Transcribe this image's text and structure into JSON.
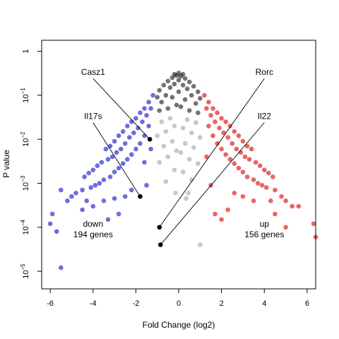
{
  "chart_data": {
    "type": "scatter",
    "xlabel": "Fold Change (log2)",
    "ylabel": "P value",
    "xlim": [
      -6.4,
      6.4
    ],
    "ylim_log10": [
      -5.4,
      0.25
    ],
    "x_ticks": [
      {
        "value": -6,
        "label": "-6"
      },
      {
        "value": -4,
        "label": "-4"
      },
      {
        "value": -2,
        "label": "-2"
      },
      {
        "value": 0,
        "label": "0"
      },
      {
        "value": 2,
        "label": "2"
      },
      {
        "value": 4,
        "label": "4"
      },
      {
        "value": 6,
        "label": "6"
      }
    ],
    "y_ticks": [
      {
        "value": 1,
        "base": "1",
        "exp": ""
      },
      {
        "value": 0.1,
        "base": "10",
        "exp": "−1"
      },
      {
        "value": 0.01,
        "base": "10",
        "exp": "−2"
      },
      {
        "value": 0.001,
        "base": "10",
        "exp": "−3"
      },
      {
        "value": 0.0001,
        "base": "10",
        "exp": "−4"
      },
      {
        "value": 1e-05,
        "base": "10",
        "exp": "−5"
      }
    ],
    "colors": {
      "down": "#1f1fcc",
      "up": "#dd1111",
      "top": "#000000",
      "ns": "#999999"
    },
    "group_labels": [
      {
        "id": "down",
        "lines": [
          "down",
          "194 genes"
        ],
        "x": -4.0,
        "p": 0.0001
      },
      {
        "id": "up",
        "lines": [
          "up",
          "156 genes"
        ],
        "x": 4.0,
        "p": 0.0001
      }
    ],
    "highlighted_genes": [
      {
        "name": "Casz1",
        "x": -1.35,
        "p": 0.01,
        "label_x": -4.0,
        "label_p": 0.3
      },
      {
        "name": "Il17s",
        "x": -1.8,
        "p": 0.0005,
        "label_x": -4.0,
        "label_p": 0.03
      },
      {
        "name": "Rorc",
        "x": -0.9,
        "p": 0.0001,
        "label_x": 4.0,
        "label_p": 0.3
      },
      {
        "name": "Il22",
        "x": -0.85,
        "p": 4e-05,
        "label_x": 4.0,
        "label_p": 0.03
      }
    ],
    "points": [
      {
        "x": -0.2,
        "p": 0.3,
        "g": "top"
      },
      {
        "x": 0.0,
        "p": 0.32,
        "g": "top"
      },
      {
        "x": 0.2,
        "p": 0.3,
        "g": "top"
      },
      {
        "x": -0.1,
        "p": 0.28,
        "g": "top"
      },
      {
        "x": 0.1,
        "p": 0.27,
        "g": "top"
      },
      {
        "x": -0.3,
        "p": 0.25,
        "g": "top"
      },
      {
        "x": 0.3,
        "p": 0.24,
        "g": "top"
      },
      {
        "x": -0.5,
        "p": 0.21,
        "g": "top"
      },
      {
        "x": 0.5,
        "p": 0.2,
        "g": "top"
      },
      {
        "x": -0.7,
        "p": 0.17,
        "g": "top"
      },
      {
        "x": 0.7,
        "p": 0.16,
        "g": "top"
      },
      {
        "x": -0.9,
        "p": 0.13,
        "g": "top"
      },
      {
        "x": 0.9,
        "p": 0.12,
        "g": "top"
      },
      {
        "x": -0.4,
        "p": 0.15,
        "g": "top"
      },
      {
        "x": 0.4,
        "p": 0.14,
        "g": "top"
      },
      {
        "x": -0.2,
        "p": 0.18,
        "g": "top"
      },
      {
        "x": 0.2,
        "p": 0.17,
        "g": "top"
      },
      {
        "x": -0.6,
        "p": 0.1,
        "g": "top"
      },
      {
        "x": 0.6,
        "p": 0.1,
        "g": "top"
      },
      {
        "x": -1.0,
        "p": 0.09,
        "g": "top"
      },
      {
        "x": 1.0,
        "p": 0.085,
        "g": "top"
      },
      {
        "x": -0.3,
        "p": 0.09,
        "g": "top"
      },
      {
        "x": 0.3,
        "p": 0.08,
        "g": "top"
      },
      {
        "x": -0.8,
        "p": 0.07,
        "g": "top"
      },
      {
        "x": 0.8,
        "p": 0.065,
        "g": "top"
      },
      {
        "x": 0.0,
        "p": 0.12,
        "g": "top"
      },
      {
        "x": -0.1,
        "p": 0.06,
        "g": "top"
      },
      {
        "x": 0.1,
        "p": 0.055,
        "g": "top"
      },
      {
        "x": -0.5,
        "p": 0.05,
        "g": "top"
      },
      {
        "x": 0.5,
        "p": 0.045,
        "g": "top"
      },
      {
        "x": -0.9,
        "p": 0.045,
        "g": "top"
      },
      {
        "x": 0.9,
        "p": 0.04,
        "g": "top"
      },
      {
        "x": 0.0,
        "p": 0.22,
        "g": "top"
      },
      {
        "x": -0.4,
        "p": 0.03,
        "g": "ns"
      },
      {
        "x": 0.4,
        "p": 0.028,
        "g": "ns"
      },
      {
        "x": -0.8,
        "p": 0.025,
        "g": "ns"
      },
      {
        "x": 0.8,
        "p": 0.024,
        "g": "ns"
      },
      {
        "x": -0.2,
        "p": 0.02,
        "g": "ns"
      },
      {
        "x": 0.2,
        "p": 0.018,
        "g": "ns"
      },
      {
        "x": -0.6,
        "p": 0.015,
        "g": "ns"
      },
      {
        "x": 0.6,
        "p": 0.014,
        "g": "ns"
      },
      {
        "x": -1.0,
        "p": 0.012,
        "g": "ns"
      },
      {
        "x": 1.0,
        "p": 0.011,
        "g": "ns"
      },
      {
        "x": -0.3,
        "p": 0.009,
        "g": "ns"
      },
      {
        "x": 0.3,
        "p": 0.008,
        "g": "ns"
      },
      {
        "x": -0.7,
        "p": 0.007,
        "g": "ns"
      },
      {
        "x": 0.7,
        "p": 0.0065,
        "g": "ns"
      },
      {
        "x": -0.1,
        "p": 0.0055,
        "g": "ns"
      },
      {
        "x": 0.1,
        "p": 0.005,
        "g": "ns"
      },
      {
        "x": -0.5,
        "p": 0.004,
        "g": "ns"
      },
      {
        "x": 0.5,
        "p": 0.0035,
        "g": "ns"
      },
      {
        "x": -0.9,
        "p": 0.003,
        "g": "ns"
      },
      {
        "x": 0.9,
        "p": 0.0028,
        "g": "ns"
      },
      {
        "x": -0.2,
        "p": 0.002,
        "g": "ns"
      },
      {
        "x": 0.2,
        "p": 0.0018,
        "g": "ns"
      },
      {
        "x": 0.6,
        "p": 0.0012,
        "g": "ns"
      },
      {
        "x": -0.6,
        "p": 0.0011,
        "g": "ns"
      },
      {
        "x": -0.15,
        "p": 0.0006,
        "g": "ns"
      },
      {
        "x": 0.45,
        "p": 0.0006,
        "g": "ns"
      },
      {
        "x": 0.35,
        "p": 0.00045,
        "g": "ns"
      },
      {
        "x": 1.0,
        "p": 4e-05,
        "g": "ns"
      },
      {
        "x": -1.2,
        "p": 0.1,
        "g": "down"
      },
      {
        "x": -1.4,
        "p": 0.07,
        "g": "down"
      },
      {
        "x": -1.6,
        "p": 0.05,
        "g": "down"
      },
      {
        "x": -1.8,
        "p": 0.04,
        "g": "down"
      },
      {
        "x": -2.0,
        "p": 0.03,
        "g": "down"
      },
      {
        "x": -2.2,
        "p": 0.025,
        "g": "down"
      },
      {
        "x": -2.4,
        "p": 0.02,
        "g": "down"
      },
      {
        "x": -2.6,
        "p": 0.015,
        "g": "down"
      },
      {
        "x": -2.8,
        "p": 0.012,
        "g": "down"
      },
      {
        "x": -3.0,
        "p": 0.009,
        "g": "down"
      },
      {
        "x": -3.2,
        "p": 0.007,
        "g": "down"
      },
      {
        "x": -3.4,
        "p": 0.006,
        "g": "down"
      },
      {
        "x": -1.3,
        "p": 0.05,
        "g": "down"
      },
      {
        "x": -1.5,
        "p": 0.035,
        "g": "down"
      },
      {
        "x": -1.7,
        "p": 0.025,
        "g": "down"
      },
      {
        "x": -1.9,
        "p": 0.018,
        "g": "down"
      },
      {
        "x": -2.1,
        "p": 0.014,
        "g": "down"
      },
      {
        "x": -2.3,
        "p": 0.011,
        "g": "down"
      },
      {
        "x": -2.5,
        "p": 0.008,
        "g": "down"
      },
      {
        "x": -2.7,
        "p": 0.006,
        "g": "down"
      },
      {
        "x": -2.9,
        "p": 0.005,
        "g": "down"
      },
      {
        "x": -3.1,
        "p": 0.004,
        "g": "down"
      },
      {
        "x": -3.3,
        "p": 0.0035,
        "g": "down"
      },
      {
        "x": -3.6,
        "p": 0.003,
        "g": "down"
      },
      {
        "x": -3.8,
        "p": 0.0025,
        "g": "down"
      },
      {
        "x": -4.0,
        "p": 0.002,
        "g": "down"
      },
      {
        "x": -4.2,
        "p": 0.0017,
        "g": "down"
      },
      {
        "x": -4.4,
        "p": 0.0014,
        "g": "down"
      },
      {
        "x": -1.4,
        "p": 0.02,
        "g": "down"
      },
      {
        "x": -1.6,
        "p": 0.012,
        "g": "down"
      },
      {
        "x": -1.8,
        "p": 0.008,
        "g": "down"
      },
      {
        "x": -2.0,
        "p": 0.006,
        "g": "down"
      },
      {
        "x": -2.2,
        "p": 0.0045,
        "g": "down"
      },
      {
        "x": -2.4,
        "p": 0.0035,
        "g": "down"
      },
      {
        "x": -2.6,
        "p": 0.0028,
        "g": "down"
      },
      {
        "x": -2.8,
        "p": 0.0022,
        "g": "down"
      },
      {
        "x": -3.0,
        "p": 0.0018,
        "g": "down"
      },
      {
        "x": -3.2,
        "p": 0.0014,
        "g": "down"
      },
      {
        "x": -3.5,
        "p": 0.0012,
        "g": "down"
      },
      {
        "x": -3.7,
        "p": 0.001,
        "g": "down"
      },
      {
        "x": -3.9,
        "p": 0.0009,
        "g": "down"
      },
      {
        "x": -4.1,
        "p": 0.0008,
        "g": "down"
      },
      {
        "x": -4.5,
        "p": 0.0007,
        "g": "down"
      },
      {
        "x": -4.8,
        "p": 0.0006,
        "g": "down"
      },
      {
        "x": -5.0,
        "p": 0.0005,
        "g": "down"
      },
      {
        "x": -5.2,
        "p": 0.0004,
        "g": "down"
      },
      {
        "x": -5.5,
        "p": 0.0007,
        "g": "down"
      },
      {
        "x": -5.9,
        "p": 0.0002,
        "g": "down"
      },
      {
        "x": -6.0,
        "p": 0.00012,
        "g": "down"
      },
      {
        "x": -5.7,
        "p": 8e-05,
        "g": "down"
      },
      {
        "x": -5.5,
        "p": 1.2e-05,
        "g": "down"
      },
      {
        "x": -4.5,
        "p": 0.00025,
        "g": "down"
      },
      {
        "x": -4.0,
        "p": 0.0003,
        "g": "down"
      },
      {
        "x": -3.5,
        "p": 0.0004,
        "g": "down"
      },
      {
        "x": -3.0,
        "p": 0.00045,
        "g": "down"
      },
      {
        "x": -2.5,
        "p": 0.0005,
        "g": "down"
      },
      {
        "x": -2.2,
        "p": 0.0007,
        "g": "down"
      },
      {
        "x": -3.3,
        "p": 0.00015,
        "g": "down"
      },
      {
        "x": -2.8,
        "p": 0.0002,
        "g": "down"
      },
      {
        "x": -1.5,
        "p": 0.0009,
        "g": "down"
      },
      {
        "x": -1.6,
        "p": 0.003,
        "g": "down"
      },
      {
        "x": -1.3,
        "p": 0.006,
        "g": "down"
      },
      {
        "x": -4.3,
        "p": 0.0004,
        "g": "down"
      },
      {
        "x": 1.2,
        "p": 0.1,
        "g": "up"
      },
      {
        "x": 1.4,
        "p": 0.07,
        "g": "up"
      },
      {
        "x": 1.6,
        "p": 0.05,
        "g": "up"
      },
      {
        "x": 1.8,
        "p": 0.04,
        "g": "up"
      },
      {
        "x": 2.0,
        "p": 0.03,
        "g": "up"
      },
      {
        "x": 2.2,
        "p": 0.025,
        "g": "up"
      },
      {
        "x": 2.4,
        "p": 0.02,
        "g": "up"
      },
      {
        "x": 2.6,
        "p": 0.015,
        "g": "up"
      },
      {
        "x": 2.8,
        "p": 0.012,
        "g": "up"
      },
      {
        "x": 3.0,
        "p": 0.009,
        "g": "up"
      },
      {
        "x": 3.2,
        "p": 0.007,
        "g": "up"
      },
      {
        "x": 3.4,
        "p": 0.006,
        "g": "up"
      },
      {
        "x": 1.3,
        "p": 0.05,
        "g": "up"
      },
      {
        "x": 1.5,
        "p": 0.035,
        "g": "up"
      },
      {
        "x": 1.7,
        "p": 0.025,
        "g": "up"
      },
      {
        "x": 1.9,
        "p": 0.018,
        "g": "up"
      },
      {
        "x": 2.1,
        "p": 0.014,
        "g": "up"
      },
      {
        "x": 2.3,
        "p": 0.011,
        "g": "up"
      },
      {
        "x": 2.5,
        "p": 0.008,
        "g": "up"
      },
      {
        "x": 2.7,
        "p": 0.006,
        "g": "up"
      },
      {
        "x": 2.9,
        "p": 0.005,
        "g": "up"
      },
      {
        "x": 3.1,
        "p": 0.004,
        "g": "up"
      },
      {
        "x": 3.3,
        "p": 0.0035,
        "g": "up"
      },
      {
        "x": 3.6,
        "p": 0.003,
        "g": "up"
      },
      {
        "x": 3.8,
        "p": 0.0025,
        "g": "up"
      },
      {
        "x": 4.0,
        "p": 0.002,
        "g": "up"
      },
      {
        "x": 4.2,
        "p": 0.0017,
        "g": "up"
      },
      {
        "x": 4.4,
        "p": 0.0014,
        "g": "up"
      },
      {
        "x": 1.4,
        "p": 0.02,
        "g": "up"
      },
      {
        "x": 1.6,
        "p": 0.012,
        "g": "up"
      },
      {
        "x": 1.8,
        "p": 0.008,
        "g": "up"
      },
      {
        "x": 2.0,
        "p": 0.006,
        "g": "up"
      },
      {
        "x": 2.2,
        "p": 0.0045,
        "g": "up"
      },
      {
        "x": 2.4,
        "p": 0.0035,
        "g": "up"
      },
      {
        "x": 2.6,
        "p": 0.0028,
        "g": "up"
      },
      {
        "x": 2.8,
        "p": 0.0022,
        "g": "up"
      },
      {
        "x": 3.0,
        "p": 0.0018,
        "g": "up"
      },
      {
        "x": 3.2,
        "p": 0.0014,
        "g": "up"
      },
      {
        "x": 3.5,
        "p": 0.0012,
        "g": "up"
      },
      {
        "x": 3.7,
        "p": 0.001,
        "g": "up"
      },
      {
        "x": 3.9,
        "p": 0.0009,
        "g": "up"
      },
      {
        "x": 4.1,
        "p": 0.0008,
        "g": "up"
      },
      {
        "x": 4.5,
        "p": 0.0007,
        "g": "up"
      },
      {
        "x": 4.8,
        "p": 0.0005,
        "g": "up"
      },
      {
        "x": 5.0,
        "p": 0.0004,
        "g": "up"
      },
      {
        "x": 5.3,
        "p": 0.0003,
        "g": "up"
      },
      {
        "x": 5.6,
        "p": 0.0003,
        "g": "up"
      },
      {
        "x": 6.3,
        "p": 0.00012,
        "g": "up"
      },
      {
        "x": 6.4,
        "p": 6e-05,
        "g": "up"
      },
      {
        "x": 5.0,
        "p": 0.0001,
        "g": "up"
      },
      {
        "x": 4.5,
        "p": 0.0002,
        "g": "up"
      },
      {
        "x": 3.5,
        "p": 0.0004,
        "g": "up"
      },
      {
        "x": 3.0,
        "p": 0.0005,
        "g": "up"
      },
      {
        "x": 2.6,
        "p": 0.0006,
        "g": "up"
      },
      {
        "x": 2.0,
        "p": 0.00015,
        "g": "up"
      },
      {
        "x": 1.7,
        "p": 0.0002,
        "g": "up"
      },
      {
        "x": 2.3,
        "p": 0.00025,
        "g": "up"
      },
      {
        "x": 1.5,
        "p": 0.0009,
        "g": "up"
      },
      {
        "x": 1.3,
        "p": 0.004,
        "g": "up"
      },
      {
        "x": 4.3,
        "p": 0.0004,
        "g": "up"
      }
    ]
  }
}
